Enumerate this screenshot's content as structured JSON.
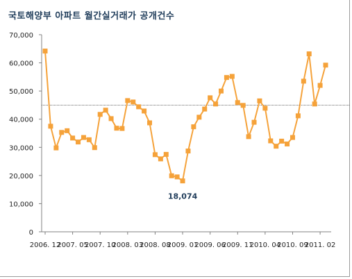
{
  "chart_data": {
    "type": "line",
    "title": "국토해양부 아파트 월간실거래가 공개건수",
    "xlabel": "",
    "ylabel": "",
    "ylim": [
      0,
      70000
    ],
    "yticks": [
      "0",
      "10,000",
      "20,000",
      "30,000",
      "40,000",
      "50,000",
      "60,000",
      "70,000"
    ],
    "xtick_labels": [
      "2006. 12",
      "2007. 05",
      "2007. 10",
      "2008. 03",
      "2008. 08",
      "2009. 01",
      "2009. 06",
      "2009. 11",
      "2010. 04",
      "2010. 09",
      "2011. 02"
    ],
    "xtick_index": [
      0,
      5,
      10,
      15,
      20,
      25,
      30,
      35,
      40,
      45,
      50
    ],
    "grid": false,
    "legend": "none",
    "reference_line": 45000,
    "annotation": {
      "text": "18,074",
      "index": 25,
      "value": 18074
    },
    "series": [
      {
        "color": "#f5a23a",
        "values": [
          64200,
          37500,
          29800,
          35300,
          35900,
          33300,
          31900,
          33500,
          32700,
          29900,
          41700,
          43200,
          40200,
          36800,
          36700,
          46600,
          46100,
          44400,
          42900,
          38700,
          27400,
          25900,
          27500,
          19900,
          19500,
          18074,
          28700,
          37300,
          40700,
          43600,
          47600,
          45400,
          50000,
          54800,
          55200,
          45900,
          44900,
          33800,
          38900,
          46500,
          43900,
          32300,
          30400,
          32200,
          31200,
          33500,
          41200,
          53500,
          63200,
          45400,
          52000,
          59200
        ]
      }
    ]
  }
}
